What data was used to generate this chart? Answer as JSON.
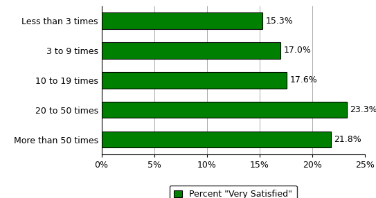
{
  "categories": [
    "Less than 3 times",
    "3 to 9 times",
    "10 to 19 times",
    "20 to 50 times",
    "More than 50 times"
  ],
  "values": [
    15.3,
    17.0,
    17.6,
    23.3,
    21.8
  ],
  "bar_color": "#008000",
  "bar_edge_color": "#000000",
  "value_labels": [
    "15.3%",
    "17.0%",
    "17.6%",
    "23.3%",
    "21.8%"
  ],
  "xlim": [
    0,
    25
  ],
  "xticks": [
    0,
    5,
    10,
    15,
    20,
    25
  ],
  "xtick_labels": [
    "0%",
    "5%",
    "10%",
    "15%",
    "20%",
    "25%"
  ],
  "legend_label": "Percent \"Very Satisfied\"",
  "background_color": "#ffffff",
  "grid_color": "#aaaaaa",
  "label_fontsize": 9,
  "tick_fontsize": 9,
  "value_fontsize": 9
}
